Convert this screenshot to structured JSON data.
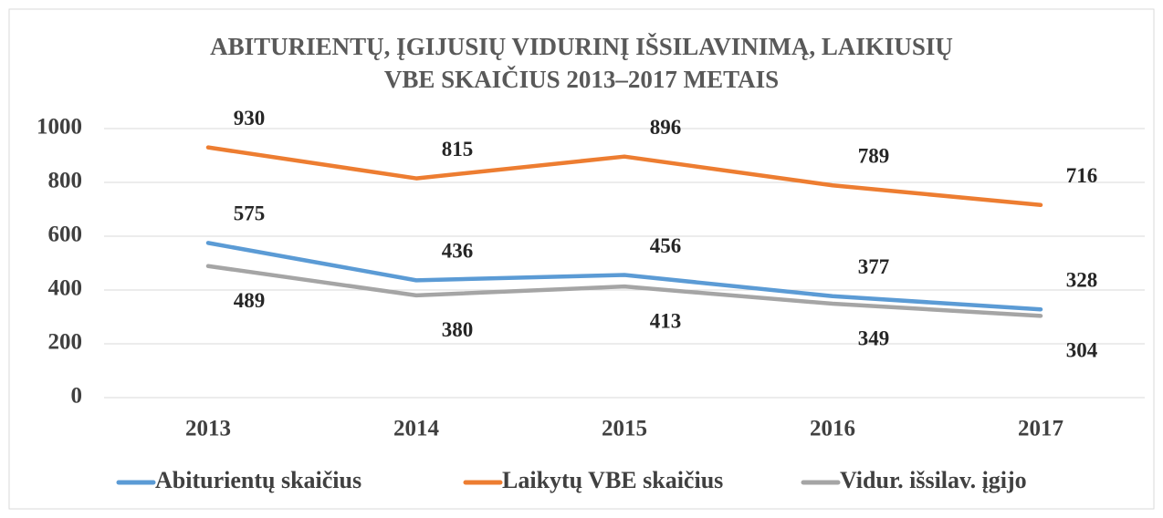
{
  "chart_data": {
    "type": "line",
    "title": [
      "ABITURIENTŲ, ĮGIJUSIŲ VIDURINĮ IŠSILAVINIMĄ, LAIKIUSIŲ",
      "VBE SKAIČIUS 2013–2017 METAIS"
    ],
    "categories": [
      "2013",
      "2014",
      "2015",
      "2016",
      "2017"
    ],
    "series": [
      {
        "name": "Abiturientų skaičius",
        "color": "#5b9bd5",
        "values": [
          575,
          436,
          456,
          377,
          328
        ]
      },
      {
        "name": "Laikytų VBE skaičius",
        "color": "#ed7d31",
        "values": [
          930,
          815,
          896,
          789,
          716
        ]
      },
      {
        "name": "Vidur. išsilav. įgijo",
        "color": "#a5a5a5",
        "values": [
          489,
          380,
          413,
          349,
          304
        ]
      }
    ],
    "ylim": [
      0,
      1000
    ],
    "yticks": [
      0,
      200,
      400,
      600,
      800,
      1000
    ],
    "grid": true,
    "legend": "bottom"
  }
}
